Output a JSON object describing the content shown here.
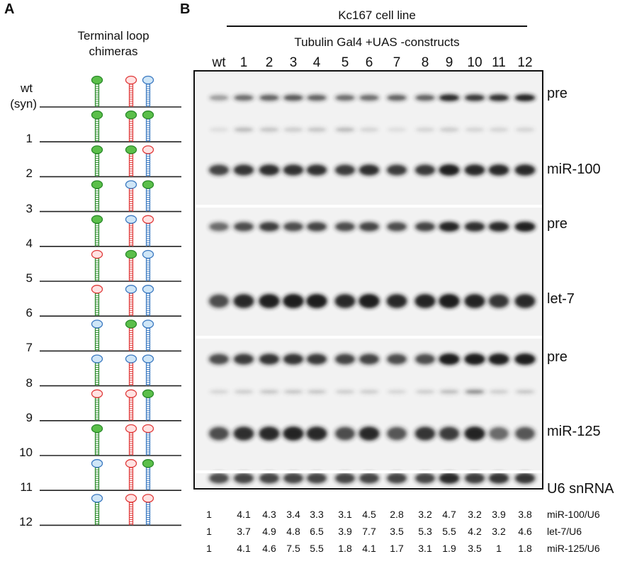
{
  "panel_a": {
    "letter": "A",
    "title_line1": "Terminal loop",
    "title_line2": "chimeras",
    "rows": [
      {
        "label": "wt",
        "label2": "(syn)",
        "loops": [
          "green",
          "red",
          "blue"
        ]
      },
      {
        "label": "1",
        "loops": [
          "green",
          "green",
          "green"
        ]
      },
      {
        "label": "2",
        "loops": [
          "green",
          "green",
          "red"
        ]
      },
      {
        "label": "3",
        "loops": [
          "green",
          "blue",
          "green"
        ]
      },
      {
        "label": "4",
        "loops": [
          "green",
          "blue",
          "red"
        ]
      },
      {
        "label": "5",
        "loops": [
          "red",
          "green",
          "blue"
        ]
      },
      {
        "label": "6",
        "loops": [
          "red",
          "blue",
          "blue"
        ]
      },
      {
        "label": "7",
        "loops": [
          "blue",
          "green",
          "blue"
        ]
      },
      {
        "label": "8",
        "loops": [
          "blue",
          "blue",
          "blue"
        ]
      },
      {
        "label": "9",
        "loops": [
          "red",
          "red",
          "green"
        ]
      },
      {
        "label": "10",
        "loops": [
          "green",
          "red",
          "red"
        ]
      },
      {
        "label": "11",
        "loops": [
          "blue",
          "red",
          "green"
        ]
      },
      {
        "label": "12",
        "loops": [
          "blue",
          "red",
          "red"
        ]
      }
    ],
    "stem_colors": [
      "green",
      "red",
      "blue"
    ]
  },
  "panel_b": {
    "letter": "B",
    "cell_line": "Kc167 cell line",
    "construct_label": "Tubulin Gal4 +UAS -constructs",
    "lanes": [
      "wt",
      "1",
      "2",
      "3",
      "4",
      "5",
      "6",
      "7",
      "8",
      "9",
      "10",
      "11",
      "12"
    ],
    "band_labels": [
      "pre",
      "miR-100",
      "pre",
      "let-7",
      "pre",
      "miR-125",
      "U6 snRNA"
    ],
    "quant": [
      {
        "label": "miR-100/U6",
        "values": [
          "1",
          "4.1",
          "4.3",
          "3.4",
          "3.3",
          "3.1",
          "4.5",
          "2.8",
          "3.2",
          "4.7",
          "3.2",
          "3.9",
          "3.8"
        ]
      },
      {
        "label": "let-7/U6",
        "values": [
          "1",
          "3.7",
          "4.9",
          "4.8",
          "6.5",
          "3.9",
          "7.7",
          "3.5",
          "5.3",
          "5.5",
          "4.2",
          "3.2",
          "4.6"
        ]
      },
      {
        "label": "miR-125/U6",
        "values": [
          "1",
          "4.1",
          "4.6",
          "7.5",
          "5.5",
          "1.8",
          "4.1",
          "1.7",
          "3.1",
          "1.9",
          "3.5",
          "1",
          "1.8"
        ]
      }
    ]
  },
  "colors": {
    "green_fill": "#5bbf4a",
    "green_stroke": "#2a8a2a",
    "red_fill": "#ffe3e3",
    "red_stroke": "#e03a3a",
    "blue_fill": "#cfe6f7",
    "blue_stroke": "#3a78c0",
    "blot_bg": "#f2f2f2",
    "band": "#1a1a1a"
  }
}
